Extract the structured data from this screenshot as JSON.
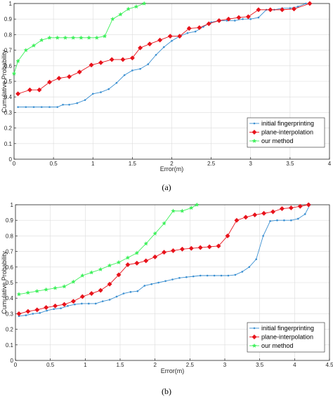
{
  "chart_data": [
    {
      "type": "line",
      "panel_label": "(a)",
      "xlabel": "Error(m)",
      "ylabel": "Cumulative Probability",
      "xlim": [
        0,
        4
      ],
      "ylim": [
        0,
        1
      ],
      "xticks": [
        0,
        0.5,
        1,
        1.5,
        2,
        2.5,
        3,
        3.5,
        4
      ],
      "yticks": [
        0,
        0.1,
        0.2,
        0.3,
        0.4,
        0.5,
        0.6,
        0.7,
        0.8,
        0.9,
        1
      ],
      "grid": true,
      "legend_position": "bottom-right",
      "series": [
        {
          "name": "initial fingerprinting",
          "color": "#3a8fd1",
          "marker": "point",
          "x": [
            0.05,
            0.15,
            0.25,
            0.35,
            0.45,
            0.55,
            0.62,
            0.7,
            0.8,
            0.9,
            1.0,
            1.1,
            1.2,
            1.3,
            1.4,
            1.5,
            1.6,
            1.7,
            1.8,
            1.9,
            2.0,
            2.1,
            2.2,
            2.3,
            2.4,
            2.5,
            2.6,
            2.7,
            2.8,
            2.9,
            3.0,
            3.1,
            3.2,
            3.3,
            3.4,
            3.5,
            3.6,
            3.7
          ],
          "y": [
            0.335,
            0.335,
            0.335,
            0.335,
            0.335,
            0.335,
            0.35,
            0.35,
            0.36,
            0.38,
            0.42,
            0.43,
            0.45,
            0.49,
            0.54,
            0.57,
            0.58,
            0.61,
            0.67,
            0.72,
            0.76,
            0.79,
            0.81,
            0.82,
            0.85,
            0.88,
            0.89,
            0.89,
            0.89,
            0.9,
            0.9,
            0.91,
            0.96,
            0.96,
            0.97,
            0.97,
            0.98,
            1.0
          ]
        },
        {
          "name": "plane-interpolation",
          "color": "#e8121b",
          "marker": "diamond",
          "x": [
            0.05,
            0.2,
            0.32,
            0.45,
            0.57,
            0.7,
            0.83,
            0.98,
            1.1,
            1.24,
            1.38,
            1.5,
            1.6,
            1.72,
            1.85,
            1.98,
            2.1,
            2.22,
            2.35,
            2.47,
            2.6,
            2.72,
            2.85,
            2.97,
            3.1,
            3.25,
            3.4,
            3.55,
            3.75
          ],
          "y": [
            0.42,
            0.445,
            0.445,
            0.495,
            0.52,
            0.53,
            0.56,
            0.605,
            0.62,
            0.64,
            0.64,
            0.65,
            0.715,
            0.74,
            0.765,
            0.79,
            0.79,
            0.84,
            0.845,
            0.87,
            0.89,
            0.9,
            0.91,
            0.915,
            0.96,
            0.96,
            0.96,
            0.965,
            1.0
          ]
        },
        {
          "name": "our method",
          "color": "#3df05a",
          "marker": "star",
          "x": [
            0.0,
            0.05,
            0.15,
            0.25,
            0.35,
            0.45,
            0.55,
            0.65,
            0.75,
            0.85,
            0.95,
            1.05,
            1.15,
            1.25,
            1.35,
            1.45,
            1.55,
            1.65
          ],
          "y": [
            0.55,
            0.63,
            0.7,
            0.73,
            0.765,
            0.78,
            0.78,
            0.78,
            0.78,
            0.78,
            0.78,
            0.78,
            0.79,
            0.9,
            0.93,
            0.965,
            0.98,
            1.0
          ]
        }
      ]
    },
    {
      "type": "line",
      "panel_label": "(b)",
      "xlabel": "Error(m)",
      "ylabel": "Cumulative Probability",
      "xlim": [
        0,
        4.5
      ],
      "ylim": [
        0,
        1
      ],
      "xticks": [
        0,
        0.5,
        1,
        1.5,
        2,
        2.5,
        3,
        3.5,
        4,
        4.5
      ],
      "yticks": [
        0,
        0.1,
        0.2,
        0.3,
        0.4,
        0.5,
        0.6,
        0.7,
        0.8,
        0.9,
        1
      ],
      "grid": true,
      "legend_position": "bottom-right",
      "series": [
        {
          "name": "initial fingerprinting",
          "color": "#3a8fd1",
          "marker": "point",
          "x": [
            0.05,
            0.15,
            0.25,
            0.35,
            0.45,
            0.55,
            0.65,
            0.75,
            0.85,
            0.95,
            1.05,
            1.15,
            1.25,
            1.35,
            1.45,
            1.55,
            1.65,
            1.75,
            1.85,
            1.95,
            2.05,
            2.15,
            2.25,
            2.35,
            2.45,
            2.55,
            2.65,
            2.75,
            2.85,
            2.95,
            3.05,
            3.15,
            3.25,
            3.35,
            3.45,
            3.55,
            3.65,
            3.75,
            3.85,
            3.95,
            4.05,
            4.15,
            4.22
          ],
          "y": [
            0.285,
            0.29,
            0.3,
            0.305,
            0.32,
            0.33,
            0.335,
            0.35,
            0.36,
            0.365,
            0.365,
            0.365,
            0.38,
            0.39,
            0.41,
            0.43,
            0.44,
            0.445,
            0.48,
            0.49,
            0.5,
            0.51,
            0.52,
            0.53,
            0.535,
            0.54,
            0.545,
            0.545,
            0.545,
            0.545,
            0.545,
            0.55,
            0.57,
            0.6,
            0.65,
            0.8,
            0.895,
            0.9,
            0.9,
            0.9,
            0.91,
            0.94,
            1.0
          ]
        },
        {
          "name": "plane-interpolation",
          "color": "#e8121b",
          "marker": "diamond",
          "x": [
            0.05,
            0.18,
            0.31,
            0.44,
            0.57,
            0.7,
            0.83,
            0.96,
            1.09,
            1.22,
            1.35,
            1.48,
            1.61,
            1.74,
            1.87,
            2.0,
            2.13,
            2.26,
            2.39,
            2.52,
            2.65,
            2.78,
            2.91,
            3.04,
            3.17,
            3.3,
            3.43,
            3.56,
            3.69,
            3.82,
            3.95,
            4.08,
            4.2
          ],
          "y": [
            0.3,
            0.315,
            0.325,
            0.34,
            0.35,
            0.36,
            0.38,
            0.41,
            0.43,
            0.45,
            0.49,
            0.55,
            0.615,
            0.625,
            0.64,
            0.665,
            0.695,
            0.705,
            0.715,
            0.72,
            0.725,
            0.73,
            0.735,
            0.8,
            0.9,
            0.92,
            0.935,
            0.945,
            0.955,
            0.975,
            0.98,
            0.99,
            1.0
          ]
        },
        {
          "name": "our method",
          "color": "#3df05a",
          "marker": "star",
          "x": [
            0.05,
            0.18,
            0.31,
            0.44,
            0.57,
            0.7,
            0.83,
            0.96,
            1.09,
            1.22,
            1.35,
            1.48,
            1.61,
            1.74,
            1.87,
            2.0,
            2.13,
            2.26,
            2.39,
            2.52,
            2.6
          ],
          "y": [
            0.425,
            0.435,
            0.445,
            0.455,
            0.465,
            0.475,
            0.505,
            0.545,
            0.565,
            0.585,
            0.61,
            0.63,
            0.66,
            0.69,
            0.75,
            0.815,
            0.88,
            0.96,
            0.96,
            0.98,
            1.0
          ]
        }
      ]
    }
  ]
}
